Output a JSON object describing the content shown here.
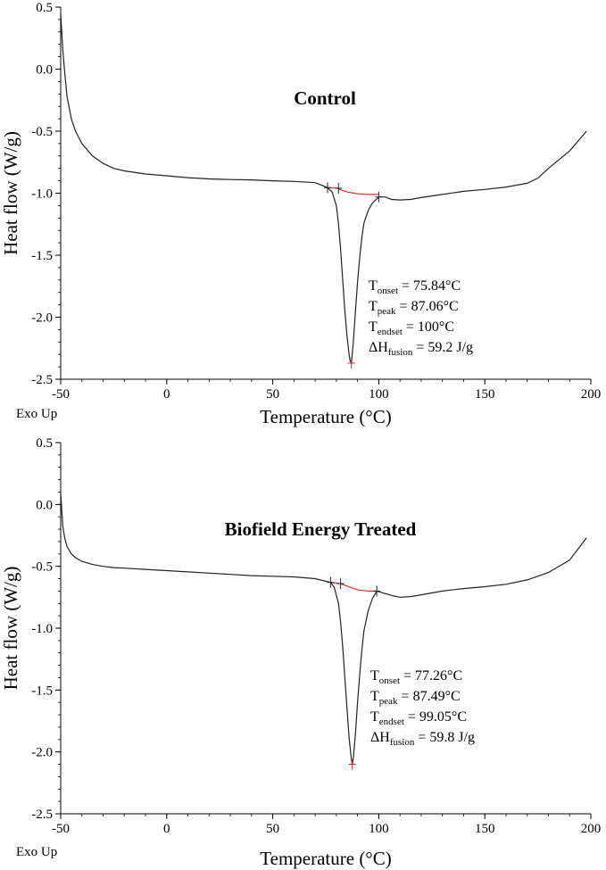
{
  "colors": {
    "curve": "#222222",
    "baseline": "#e02020",
    "axis": "#000000"
  },
  "chart_data": [
    {
      "type": "line",
      "title": "Control",
      "xlabel": "Temperature (°C)",
      "ylabel": "Heat flow (W/g)",
      "corner_label": "Exo Up",
      "xlim": [
        -50,
        200
      ],
      "ylim": [
        -2.5,
        0.5
      ],
      "xticks": [
        -50,
        0,
        50,
        100,
        150,
        200
      ],
      "yticks": [
        0.5,
        0.0,
        -0.5,
        -1.0,
        -1.5,
        -2.0,
        -2.5
      ],
      "ytick_labels": [
        "0.5",
        "0.0",
        "-0.5",
        "-1.0",
        "-1.5",
        "-2.0",
        "-2.5"
      ],
      "series": [
        {
          "x": [
            -50,
            -49.5,
            -49,
            -48,
            -47,
            -45,
            -43,
            -40,
            -35,
            -30,
            -25,
            -20,
            -10,
            0,
            10,
            20,
            30,
            40,
            50,
            60,
            70,
            75.8,
            78,
            80,
            81,
            82,
            83,
            84,
            85,
            86,
            86.5,
            87.06,
            88,
            89,
            90,
            91,
            92,
            93,
            95,
            97,
            100,
            103,
            106,
            110,
            115,
            120,
            130,
            140,
            150,
            160,
            165,
            170,
            175,
            180,
            190,
            198
          ],
          "y": [
            0.45,
            0.3,
            0.15,
            -0.05,
            -0.22,
            -0.4,
            -0.5,
            -0.6,
            -0.7,
            -0.76,
            -0.8,
            -0.82,
            -0.845,
            -0.86,
            -0.875,
            -0.885,
            -0.89,
            -0.893,
            -0.9,
            -0.905,
            -0.915,
            -0.955,
            -0.99,
            -1.1,
            -1.25,
            -1.45,
            -1.7,
            -1.95,
            -2.15,
            -2.3,
            -2.35,
            -2.37,
            -2.2,
            -1.95,
            -1.72,
            -1.52,
            -1.36,
            -1.24,
            -1.14,
            -1.08,
            -1.03,
            -1.03,
            -1.05,
            -1.055,
            -1.05,
            -1.035,
            -1.01,
            -0.985,
            -0.97,
            -0.95,
            -0.935,
            -0.92,
            -0.88,
            -0.8,
            -0.66,
            -0.5
          ]
        }
      ],
      "integration_baseline": {
        "x": [
          75.84,
          80,
          85,
          90,
          95,
          100
        ],
        "y": [
          -0.955,
          -0.96,
          -0.99,
          -1.005,
          -1.01,
          -1.01
        ]
      },
      "markers_x": [
        75.84,
        81,
        87.06,
        100
      ],
      "annotations": [
        {
          "sym": "T",
          "sub": "onset",
          "rest": " = 75.84°C"
        },
        {
          "sym": "T",
          "sub": "peak",
          "rest": " = 87.06°C"
        },
        {
          "sym": "T",
          "sub": "endset",
          "rest": " = 100°C"
        },
        {
          "sym": "ΔH",
          "sub": "fusion",
          "rest": " = 59.2 J/g"
        }
      ]
    },
    {
      "type": "line",
      "title": "Biofield Energy Treated",
      "xlabel": "Temperature (°C)",
      "ylabel": "Heat flow (W/g)",
      "corner_label": "Exo Up",
      "xlim": [
        -50,
        200
      ],
      "ylim": [
        -2.5,
        0.5
      ],
      "xticks": [
        -50,
        0,
        50,
        100,
        150,
        200
      ],
      "yticks": [
        0.5,
        0.0,
        -0.5,
        -1.0,
        -1.5,
        -2.0,
        -2.5
      ],
      "ytick_labels": [
        "0.5",
        "0.0",
        "-0.5",
        "-1.0",
        "-1.5",
        "-2.0",
        "-2.5"
      ],
      "series": [
        {
          "x": [
            -50,
            -49.5,
            -49,
            -48,
            -47,
            -45,
            -43,
            -40,
            -35,
            -30,
            -25,
            -20,
            -10,
            0,
            10,
            20,
            30,
            40,
            50,
            60,
            70,
            77.26,
            79,
            81,
            82,
            83,
            84,
            85,
            86,
            87,
            87.49,
            88,
            89,
            90,
            91,
            92,
            93,
            95,
            97,
            99.05,
            103,
            107,
            110,
            115,
            120,
            130,
            140,
            150,
            160,
            170,
            180,
            190,
            198
          ],
          "y": [
            0.1,
            -0.05,
            -0.18,
            -0.28,
            -0.34,
            -0.4,
            -0.43,
            -0.46,
            -0.485,
            -0.5,
            -0.51,
            -0.515,
            -0.525,
            -0.535,
            -0.545,
            -0.555,
            -0.565,
            -0.575,
            -0.58,
            -0.585,
            -0.6,
            -0.63,
            -0.67,
            -0.8,
            -0.95,
            -1.15,
            -1.4,
            -1.65,
            -1.88,
            -2.05,
            -2.1,
            -2.05,
            -1.85,
            -1.6,
            -1.38,
            -1.18,
            -1.02,
            -0.86,
            -0.76,
            -0.7,
            -0.72,
            -0.74,
            -0.75,
            -0.745,
            -0.73,
            -0.7,
            -0.68,
            -0.665,
            -0.645,
            -0.61,
            -0.55,
            -0.45,
            -0.27
          ]
        }
      ],
      "integration_baseline": {
        "x": [
          77.26,
          82,
          85,
          90,
          95,
          99.05
        ],
        "y": [
          -0.63,
          -0.64,
          -0.66,
          -0.69,
          -0.7,
          -0.7
        ]
      },
      "markers_x": [
        77.26,
        82,
        87.49,
        99.05
      ],
      "annotations": [
        {
          "sym": "T",
          "sub": "onset",
          "rest": " = 77.26°C"
        },
        {
          "sym": "T",
          "sub": "peak",
          "rest": " = 87.49°C"
        },
        {
          "sym": "T",
          "sub": "endset",
          "rest": " = 99.05°C"
        },
        {
          "sym": "ΔH",
          "sub": "fusion",
          "rest": " = 59.8 J/g"
        }
      ]
    }
  ]
}
